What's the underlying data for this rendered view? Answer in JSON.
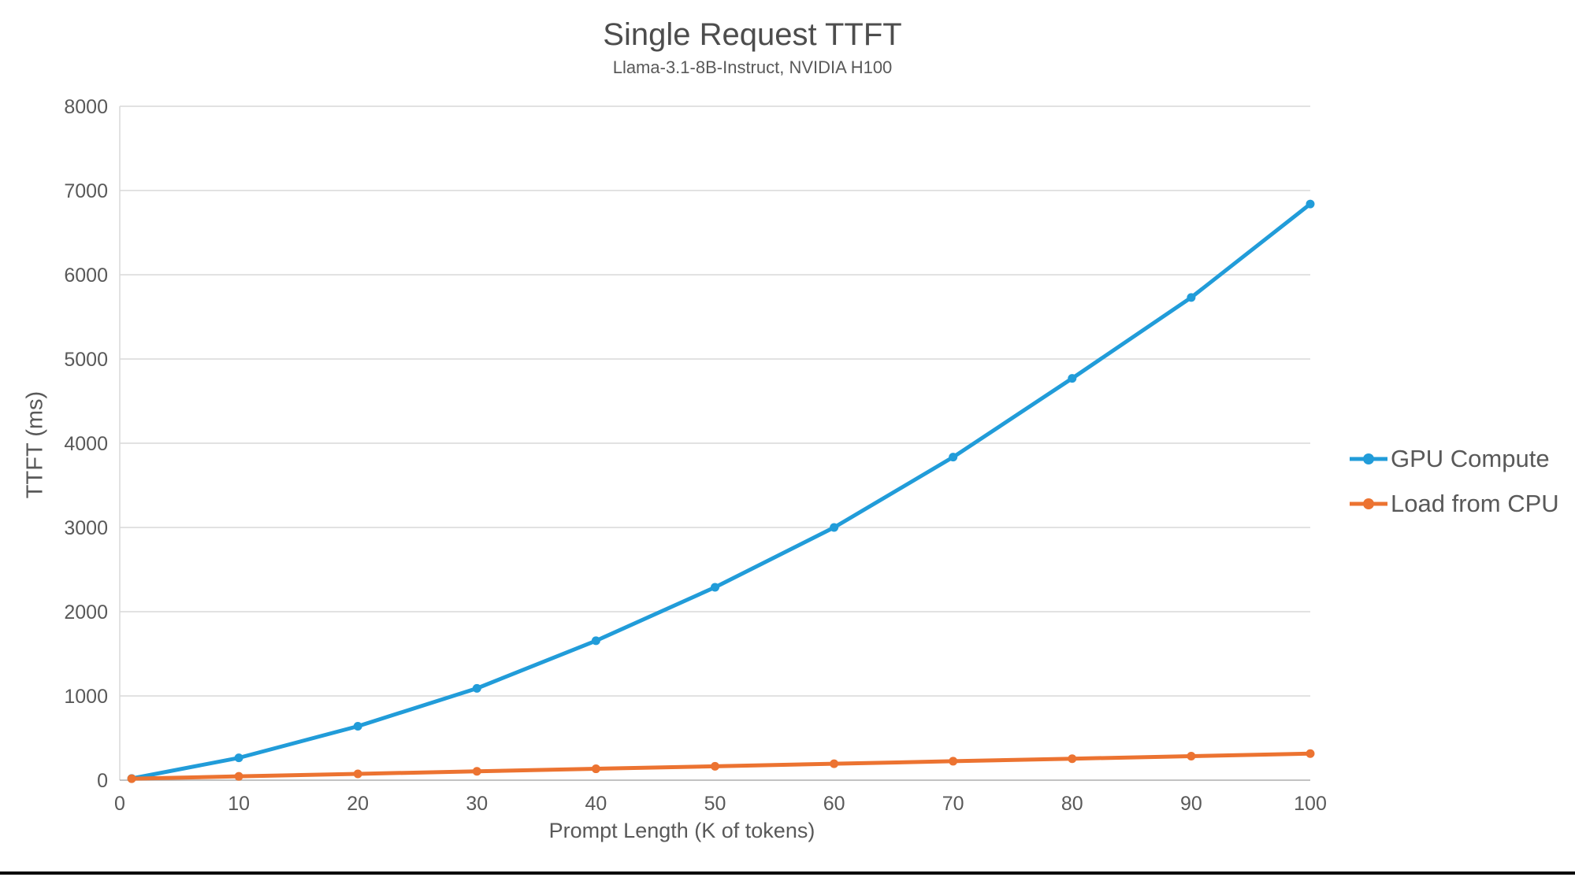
{
  "chart_data": {
    "type": "line",
    "title": "Single Request TTFT",
    "subtitle": "Llama-3.1-8B-Instruct, NVIDIA H100",
    "xlabel": "Prompt Length (K of tokens)",
    "ylabel": "TTFT (ms)",
    "xlim": [
      0,
      100
    ],
    "ylim": [
      0,
      8000
    ],
    "xticks": [
      0,
      10,
      20,
      30,
      40,
      50,
      60,
      70,
      80,
      90,
      100
    ],
    "yticks": [
      0,
      1000,
      2000,
      3000,
      4000,
      5000,
      6000,
      7000,
      8000
    ],
    "grid": "horizontal",
    "legend_position": "right",
    "x": [
      1,
      10,
      20,
      30,
      40,
      50,
      60,
      70,
      80,
      90,
      100
    ],
    "series": [
      {
        "name": "GPU Compute",
        "color": "#219CD9",
        "values": [
          20,
          265,
          640,
          1090,
          1655,
          2290,
          3000,
          3835,
          4770,
          5730,
          6840
        ]
      },
      {
        "name": "Load from CPU",
        "color": "#EC7331",
        "values": [
          18,
          45,
          75,
          105,
          135,
          165,
          195,
          225,
          255,
          285,
          315
        ]
      }
    ],
    "marker": "circle",
    "colors": {
      "gridline": "#D9D9D9",
      "y_axis_line": "#D9D9D9",
      "x_axis_line": "#ADADAD",
      "tick_label": "#595959",
      "title": "#4d4d4d",
      "subtitle": "#595959",
      "axis_title": "#595959",
      "legend_text": "#595959"
    }
  }
}
